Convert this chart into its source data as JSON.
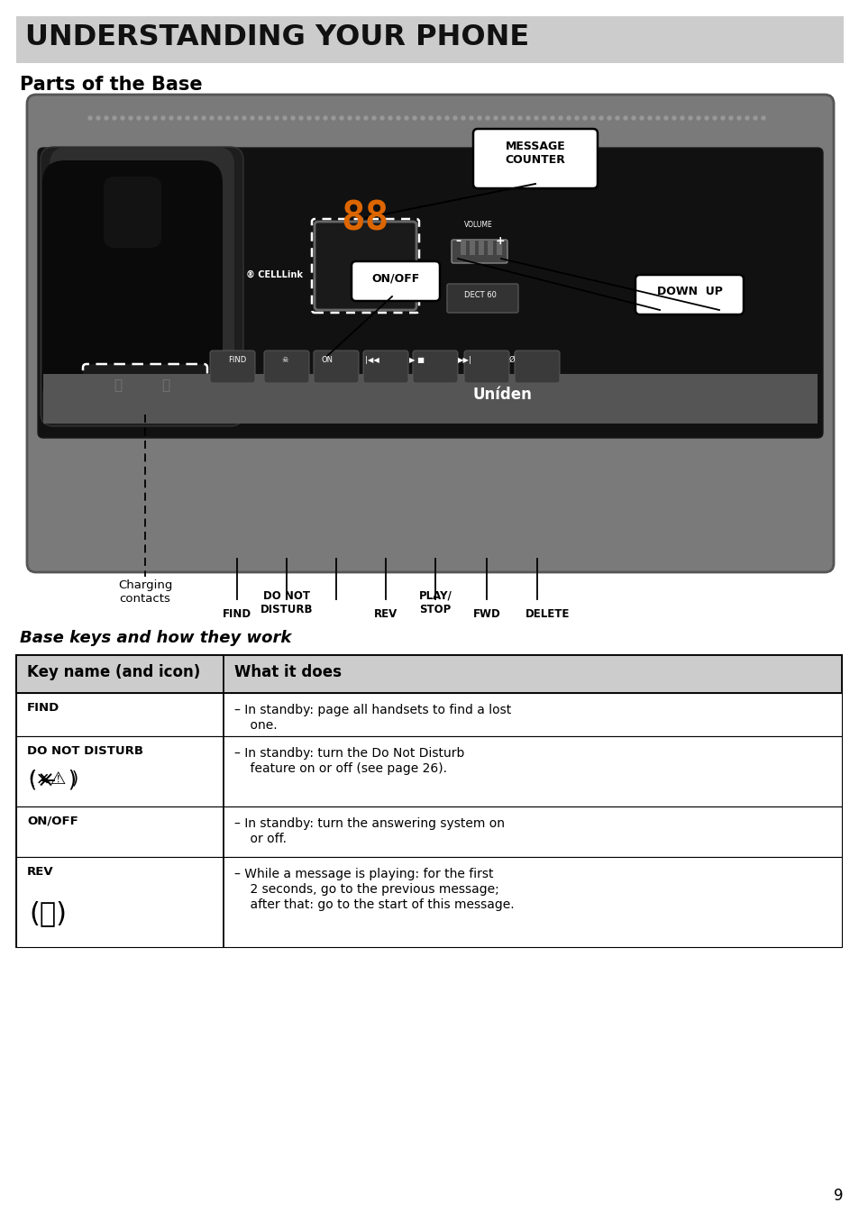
{
  "title": "UNDERSTANDING YOUR PHONE",
  "subtitle": "Parts of the Base",
  "section2_title": "Base keys and how they work",
  "title_bg": "#cccccc",
  "page_bg": "#ffffff",
  "table_header_bg": "#cccccc",
  "table_border": "#000000",
  "table_rows": [
    {
      "key_name": "FIND",
      "key_icon": null,
      "description": "In standby: page all handsets to find a lost\none."
    },
    {
      "key_name": "DO NOT DISTURB",
      "key_icon": "disturb",
      "description": "In standby: turn the Do Not Disturb\nfeature on or off (see page 26)."
    },
    {
      "key_name": "ON/OFF",
      "key_icon": null,
      "description": "In standby: turn the answering system on\nor off."
    },
    {
      "key_name": "REV",
      "key_icon": "rev",
      "description": "While a message is playing: for the first\n2 seconds, go to the previous message;\nafter that: go to the start of this message."
    }
  ],
  "labels": {
    "message_counter": "MESSAGE\nCOUNTER",
    "on_off": "ON/OFF",
    "down_up": "DOWN  UP",
    "charging": "Charging\ncontacts",
    "find": "FIND",
    "do_not_disturb": "DO NOT\nDISTURB",
    "rev": "REV",
    "play_stop": "PLAY/\nSTOP",
    "fwd": "FWD",
    "delete": "DELETE"
  },
  "page_number": "9"
}
